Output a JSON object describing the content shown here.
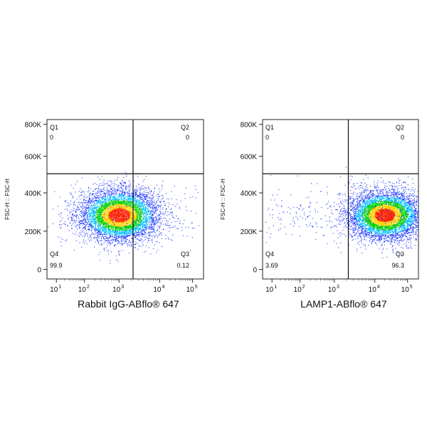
{
  "chart_data": [
    {
      "type": "scatter",
      "plot_style": "flow-cytometry density dot plot",
      "xlabel": "Rabbit IgG-ABflo® 647",
      "ylabel": "FSC-H :: FSC-H",
      "x_scale": "biexponential",
      "x_ticks": [
        "10",
        "10",
        "10",
        "10",
        "10"
      ],
      "x_tick_exponents": [
        "1",
        "2",
        "3",
        "4",
        "5"
      ],
      "y_ticks": [
        "0",
        "200K",
        "400K",
        "600K",
        "800K"
      ],
      "y_range": [
        0,
        900000
      ],
      "quadrant_gate": {
        "x": 3000,
        "y": 550000
      },
      "quadrants": [
        {
          "name": "Q1",
          "value": "0"
        },
        {
          "name": "Q2",
          "value": "0"
        },
        {
          "name": "Q3",
          "value": "0.12"
        },
        {
          "name": "Q4",
          "value": "99.9"
        }
      ],
      "population": {
        "x_center": 1000,
        "y_center": 300000,
        "main_count": 6000,
        "scatter_count": 170
      },
      "density_colors": [
        "#1f3bff",
        "#00c0ff",
        "#00d000",
        "#ffd000",
        "#ff2200"
      ]
    },
    {
      "type": "scatter",
      "plot_style": "flow-cytometry density dot plot",
      "xlabel": "LAMP1-ABflo® 647",
      "ylabel": "FSC-H :: FSC-H",
      "x_scale": "biexponential",
      "x_ticks": [
        "10",
        "10",
        "10",
        "10",
        "10"
      ],
      "x_tick_exponents": [
        "1",
        "2",
        "3",
        "4",
        "5"
      ],
      "y_ticks": [
        "0",
        "200K",
        "400K",
        "600K",
        "800K"
      ],
      "y_range": [
        0,
        900000
      ],
      "quadrant_gate": {
        "x": 3000,
        "y": 550000
      },
      "quadrants": [
        {
          "name": "Q1",
          "value": "0"
        },
        {
          "name": "Q2",
          "value": "0"
        },
        {
          "name": "Q3",
          "value": "96.3"
        },
        {
          "name": "Q4",
          "value": "3.69"
        }
      ],
      "population": {
        "x_center": 20000,
        "y_center": 300000,
        "main_count": 6000,
        "scatter_count": 300
      },
      "density_colors": [
        "#1f3bff",
        "#00c0ff",
        "#00d000",
        "#ffd000",
        "#ff2200"
      ]
    }
  ]
}
